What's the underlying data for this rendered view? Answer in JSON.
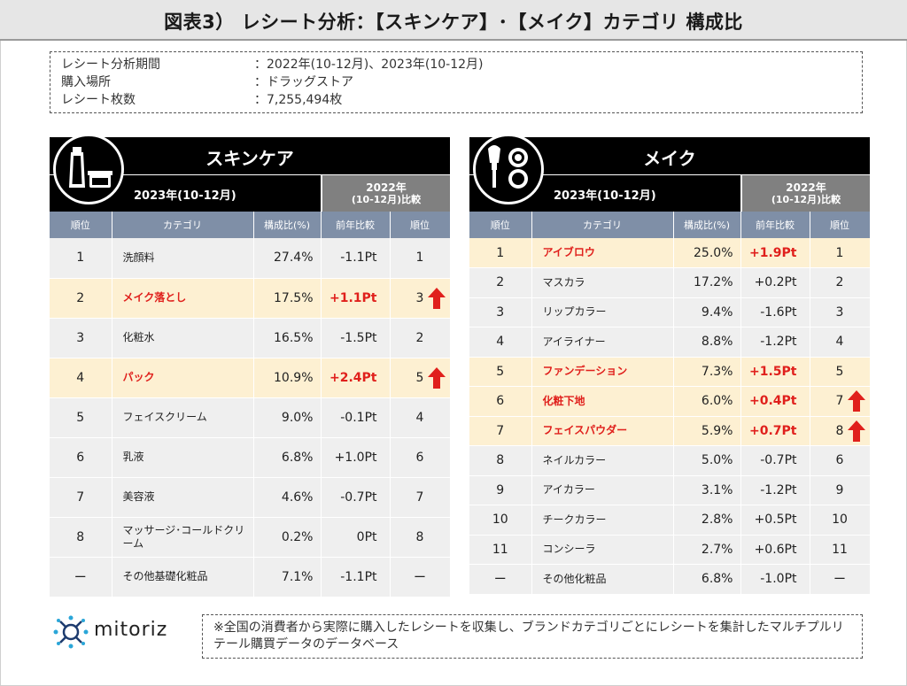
{
  "title": "図表3） レシート分析：【スキンケア】･【メイク】カテゴリ 構成比",
  "info": [
    {
      "k": "レシート分析期間",
      "v": "：2022年(10-12月)、2023年(10-12月)"
    },
    {
      "k": "購入場所",
      "v": "：ドラッグストア"
    },
    {
      "k": "レシート枚数",
      "v": "：7,255,494枚"
    }
  ],
  "columns": [
    "順位",
    "カテゴリ",
    "構成比(%)",
    "前年比較",
    "順位"
  ],
  "period_current": "2023年(10-12月)",
  "period_compare_line1": "2022年",
  "period_compare_line2": "(10-12月)比較",
  "accent_color": "#e0201c",
  "highlight_bg": "#fdf0d2",
  "header_blue": "#7f8fa7",
  "chart_data": [
    {
      "type": "table",
      "title": "スキンケア",
      "icon": "skincare-products-icon",
      "rows": [
        {
          "rank": "1",
          "category": "洗顔料",
          "share": "27.4%",
          "yoy": "-1.1Pt",
          "prev_rank": "1",
          "highlight": false,
          "up": false
        },
        {
          "rank": "2",
          "category": "メイク落とし",
          "share": "17.5%",
          "yoy": "+1.1Pt",
          "prev_rank": "3",
          "highlight": true,
          "up": true
        },
        {
          "rank": "3",
          "category": "化粧水",
          "share": "16.5%",
          "yoy": "-1.5Pt",
          "prev_rank": "2",
          "highlight": false,
          "up": false
        },
        {
          "rank": "4",
          "category": "パック",
          "share": "10.9%",
          "yoy": "+2.4Pt",
          "prev_rank": "5",
          "highlight": true,
          "up": true
        },
        {
          "rank": "5",
          "category": "フェイスクリーム",
          "share": "9.0%",
          "yoy": "-0.1Pt",
          "prev_rank": "4",
          "highlight": false,
          "up": false
        },
        {
          "rank": "6",
          "category": "乳液",
          "share": "6.8%",
          "yoy": "+1.0Pt",
          "prev_rank": "6",
          "highlight": false,
          "up": false
        },
        {
          "rank": "7",
          "category": "美容液",
          "share": "4.6%",
          "yoy": "-0.7Pt",
          "prev_rank": "7",
          "highlight": false,
          "up": false
        },
        {
          "rank": "8",
          "category": "マッサージ･コールドクリーム",
          "share": "0.2%",
          "yoy": "0Pt",
          "prev_rank": "8",
          "highlight": false,
          "up": false
        },
        {
          "rank": "ー",
          "category": "その他基礎化粧品",
          "share": "7.1%",
          "yoy": "-1.1Pt",
          "prev_rank": "ー",
          "highlight": false,
          "up": false
        }
      ]
    },
    {
      "type": "table",
      "title": "メイク",
      "icon": "makeup-brush-compact-icon",
      "rows": [
        {
          "rank": "1",
          "category": "アイブロウ",
          "share": "25.0%",
          "yoy": "+1.9Pt",
          "prev_rank": "1",
          "highlight": true,
          "up": false
        },
        {
          "rank": "2",
          "category": "マスカラ",
          "share": "17.2%",
          "yoy": "+0.2Pt",
          "prev_rank": "2",
          "highlight": false,
          "up": false
        },
        {
          "rank": "3",
          "category": "リップカラー",
          "share": "9.4%",
          "yoy": "-1.6Pt",
          "prev_rank": "3",
          "highlight": false,
          "up": false
        },
        {
          "rank": "4",
          "category": "アイライナー",
          "share": "8.8%",
          "yoy": "-1.2Pt",
          "prev_rank": "4",
          "highlight": false,
          "up": false
        },
        {
          "rank": "5",
          "category": "ファンデーション",
          "share": "7.3%",
          "yoy": "+1.5Pt",
          "prev_rank": "5",
          "highlight": true,
          "up": false
        },
        {
          "rank": "6",
          "category": "化粧下地",
          "share": "6.0%",
          "yoy": "+0.4Pt",
          "prev_rank": "7",
          "highlight": true,
          "up": true
        },
        {
          "rank": "7",
          "category": "フェイスパウダー",
          "share": "5.9%",
          "yoy": "+0.7Pt",
          "prev_rank": "8",
          "highlight": true,
          "up": true
        },
        {
          "rank": "8",
          "category": "ネイルカラー",
          "share": "5.0%",
          "yoy": "-0.7Pt",
          "prev_rank": "6",
          "highlight": false,
          "up": false
        },
        {
          "rank": "9",
          "category": "アイカラー",
          "share": "3.1%",
          "yoy": "-1.2Pt",
          "prev_rank": "9",
          "highlight": false,
          "up": false
        },
        {
          "rank": "10",
          "category": "チークカラー",
          "share": "2.8%",
          "yoy": "+0.5Pt",
          "prev_rank": "10",
          "highlight": false,
          "up": false
        },
        {
          "rank": "11",
          "category": "コンシーラ",
          "share": "2.7%",
          "yoy": "+0.6Pt",
          "prev_rank": "11",
          "highlight": false,
          "up": false
        },
        {
          "rank": "ー",
          "category": "その他化粧品",
          "share": "6.8%",
          "yoy": "-1.0Pt",
          "prev_rank": "ー",
          "highlight": false,
          "up": false
        }
      ]
    }
  ],
  "logo_text": "mitoriz",
  "footnote": "※全国の消費者から実際に購入したレシートを収集し、ブランドカテゴリごとにレシートを集計したマルチプルリテール購買データのデータベース"
}
